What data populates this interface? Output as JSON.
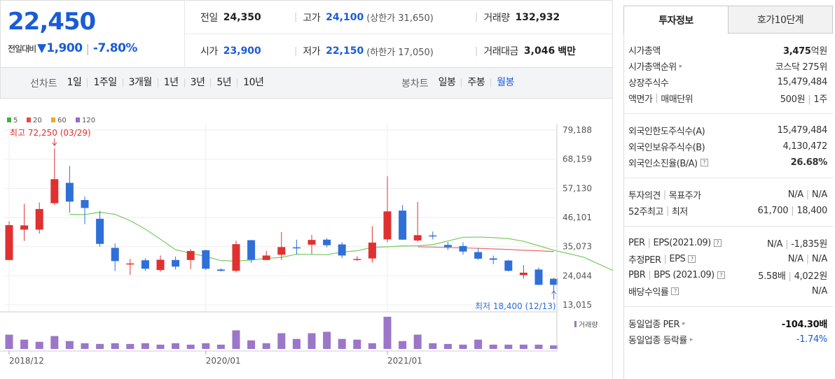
{
  "quote": {
    "price": "22,450",
    "change_label": "전일대비",
    "change_arrow": "▼",
    "change_value": "1,900",
    "change_pct": "-7.80%"
  },
  "summary": {
    "prev_close_label": "전일",
    "prev_close": "24,350",
    "high_label": "고가",
    "high": "24,100",
    "upper_limit": "(상한가 31,650)",
    "volume_label": "거래량",
    "volume": "132,932",
    "open_label": "시가",
    "open": "23,900",
    "low_label": "저가",
    "low": "22,150",
    "lower_limit": "(하한가 17,050)",
    "amount_label": "거래대금",
    "amount": "3,046",
    "amount_unit": "백만"
  },
  "period_bar": {
    "line_label": "선차트",
    "line_items": [
      "1일",
      "1주일",
      "3개월",
      "1년",
      "3년",
      "5년",
      "10년"
    ],
    "candle_label": "봉차트",
    "candle_items": [
      "일봉",
      "주봉",
      "월봉"
    ],
    "active_candle": "월봉"
  },
  "chart_data": {
    "type": "candlestick",
    "legend": [
      {
        "name": "5",
        "color": "#3cb43c"
      },
      {
        "name": "20",
        "color": "#e84848"
      },
      {
        "name": "60",
        "color": "#f5a623"
      },
      {
        "name": "120",
        "color": "#9966cc"
      }
    ],
    "y_ticks": [
      "79,188",
      "68,159",
      "57,130",
      "46,101",
      "35,073",
      "24,044",
      "13,015"
    ],
    "ylim": [
      13015,
      79188
    ],
    "x_ticks": [
      {
        "label": "2018/12",
        "index": 0
      },
      {
        "label": "2020/01",
        "index": 13
      },
      {
        "label": "2021/01",
        "index": 25
      }
    ],
    "volume_label": "거래량",
    "colors": {
      "up": "#e03030",
      "down": "#2f6fd8",
      "ma5": "#7dcf6a",
      "ma20": "#e86a6a",
      "volume": "#9b76c9"
    },
    "candles": [
      {
        "o": 30000,
        "h": 44600,
        "l": 30000,
        "c": 43200
      },
      {
        "o": 41500,
        "h": 51200,
        "l": 37200,
        "c": 43100
      },
      {
        "o": 41500,
        "h": 51800,
        "l": 40000,
        "c": 49300
      },
      {
        "o": 51500,
        "h": 72250,
        "l": 50800,
        "c": 60600
      },
      {
        "o": 59200,
        "h": 65600,
        "l": 47900,
        "c": 52100
      },
      {
        "o": 52700,
        "h": 54100,
        "l": 43600,
        "c": 49700
      },
      {
        "o": 45600,
        "h": 48600,
        "l": 35000,
        "c": 36100
      },
      {
        "o": 34600,
        "h": 36300,
        "l": 25800,
        "c": 29600
      },
      {
        "o": 28700,
        "h": 30400,
        "l": 24400,
        "c": 28700
      },
      {
        "o": 29900,
        "h": 30600,
        "l": 25900,
        "c": 26700
      },
      {
        "o": 26200,
        "h": 31700,
        "l": 25600,
        "c": 30100
      },
      {
        "o": 30000,
        "h": 31300,
        "l": 26400,
        "c": 27500
      },
      {
        "o": 30000,
        "h": 34100,
        "l": 26600,
        "c": 33400
      },
      {
        "o": 33700,
        "h": 33900,
        "l": 26200,
        "c": 26700
      },
      {
        "o": 26400,
        "h": 26900,
        "l": 25700,
        "c": 25900
      },
      {
        "o": 25900,
        "h": 37300,
        "l": 25300,
        "c": 36000
      },
      {
        "o": 37500,
        "h": 37600,
        "l": 28900,
        "c": 30100
      },
      {
        "o": 30000,
        "h": 33500,
        "l": 30000,
        "c": 31700
      },
      {
        "o": 32000,
        "h": 40600,
        "l": 30000,
        "c": 34900
      },
      {
        "o": 34800,
        "h": 37700,
        "l": 32100,
        "c": 34500
      },
      {
        "o": 35800,
        "h": 39500,
        "l": 32300,
        "c": 37600
      },
      {
        "o": 37700,
        "h": 38300,
        "l": 34800,
        "c": 35600
      },
      {
        "o": 35900,
        "h": 36700,
        "l": 30700,
        "c": 31700
      },
      {
        "o": 30400,
        "h": 31400,
        "l": 29600,
        "c": 30400
      },
      {
        "o": 30600,
        "h": 42800,
        "l": 29000,
        "c": 36600
      },
      {
        "o": 37800,
        "h": 61700,
        "l": 36700,
        "c": 48400
      },
      {
        "o": 48700,
        "h": 50800,
        "l": 37600,
        "c": 37700
      },
      {
        "o": 37400,
        "h": 52000,
        "l": 37000,
        "c": 39400
      },
      {
        "o": 39300,
        "h": 40800,
        "l": 37800,
        "c": 39000
      },
      {
        "o": 35700,
        "h": 36800,
        "l": 33800,
        "c": 34900
      },
      {
        "o": 35300,
        "h": 36700,
        "l": 32000,
        "c": 33200
      },
      {
        "o": 33000,
        "h": 34600,
        "l": 30100,
        "c": 30500
      },
      {
        "o": 30600,
        "h": 31700,
        "l": 28400,
        "c": 30100
      },
      {
        "o": 29800,
        "h": 30100,
        "l": 25700,
        "c": 25900
      },
      {
        "o": 24300,
        "h": 28100,
        "l": 23000,
        "c": 25200
      },
      {
        "o": 26400,
        "h": 27200,
        "l": 20500,
        "c": 20600
      },
      {
        "o": 22900,
        "h": 23300,
        "l": 18400,
        "c": 20600
      }
    ],
    "ma5": [
      47300,
      47200,
      48100,
      47300,
      44900,
      41700,
      37900,
      33900,
      32600,
      31300,
      29800,
      29600,
      30000,
      30600,
      31000,
      32200,
      32100,
      32000,
      33000,
      33500,
      34800,
      35000,
      35300,
      35400,
      35800,
      37200,
      38600,
      38700,
      38500,
      38100,
      37100,
      35400,
      33700,
      32400,
      31000,
      28400,
      25800
    ],
    "ma20": [
      35000,
      34900,
      34700,
      34600,
      34400,
      34200,
      34000,
      33700,
      33500,
      33200
    ],
    "volume": [
      20,
      13,
      10,
      18,
      11,
      8,
      7,
      8,
      7,
      8,
      6,
      8,
      6,
      8,
      6,
      26,
      12,
      8,
      22,
      14,
      22,
      24,
      14,
      13,
      8,
      45,
      11,
      20,
      8,
      7,
      6,
      13,
      6,
      6,
      6,
      6,
      5
    ]
  },
  "chart_annotations": {
    "max_label": "최고 72,250 (03/29)",
    "min_label": "최저 18,400 (12/13)"
  },
  "tabs": [
    "투자정보",
    "호가10단계"
  ],
  "info": {
    "s1": [
      {
        "k": "시가총액",
        "v_bold": "3,475",
        "v": "억원"
      },
      {
        "k": "시가총액순위",
        "arrow": true,
        "v": "코스닥 275위"
      },
      {
        "k": "상장주식수",
        "v": "15,479,484"
      },
      {
        "k": "액면가",
        "k2": "매매단위",
        "v": "500원",
        "v2": "1주"
      }
    ],
    "s2": [
      {
        "k": "외국인한도주식수(A)",
        "v": "15,479,484"
      },
      {
        "k": "외국인보유주식수(B)",
        "v": "4,130,472"
      },
      {
        "k": "외국인소진율(B/A)",
        "q": true,
        "v": "26.68%",
        "bold": true
      }
    ],
    "s3": [
      {
        "k": "투자의견",
        "k2": "목표주가",
        "v": "N/A",
        "v2": "N/A"
      },
      {
        "k": "52주최고",
        "k2": "최저",
        "v": "61,700",
        "v2": "18,400"
      }
    ],
    "s4": [
      {
        "k": "PER",
        "k2": "EPS(2021.09)",
        "q": true,
        "v": "N/A",
        "v2": "-1,835원"
      },
      {
        "k": "추정PER",
        "k2": "EPS",
        "q": true,
        "v": "N/A",
        "v2": "N/A"
      },
      {
        "k": "PBR",
        "k2": "BPS (2021.09)",
        "q": true,
        "v": "5.58배",
        "v2": "4,022원"
      },
      {
        "k": "배당수익률",
        "q": true,
        "v": "N/A"
      }
    ],
    "s5": [
      {
        "k": "동일업종 PER",
        "arrow": true,
        "v": "-104.30배",
        "red": true
      },
      {
        "k": "동일업종 등락률",
        "arrow": true,
        "v": "-1.74%",
        "blue": true
      }
    ]
  }
}
